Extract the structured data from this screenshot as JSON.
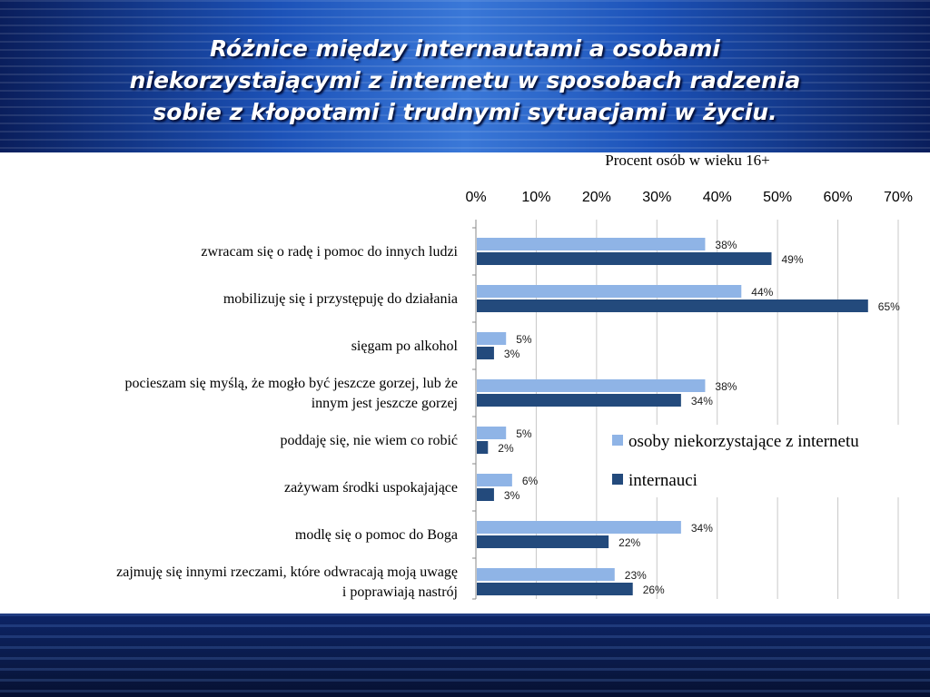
{
  "slide": {
    "title_lines": [
      "Różnice między internautami a osobami",
      "niekorzystającymi z internetu w sposobach radzenia",
      "sobie z kłopotami i trudnymi sytuacjami w życiu."
    ]
  },
  "chart_data": {
    "type": "bar",
    "orientation": "horizontal",
    "title": "Procent osób w wieku 16+",
    "xlim": [
      0,
      70
    ],
    "ticks": [
      "0%",
      "10%",
      "20%",
      "30%",
      "40%",
      "50%",
      "60%",
      "70%"
    ],
    "grid": true,
    "legend_position": "bottom-right",
    "categories": [
      [
        "zwracam się o radę i pomoc do innych ludzi"
      ],
      [
        "mobilizuję się i przystępuję do działania"
      ],
      [
        "sięgam po alkohol"
      ],
      [
        "pocieszam się myślą, że mogło być jeszcze gorzej, lub że",
        "innym jest jeszcze gorzej"
      ],
      [
        "poddaję się, nie wiem co robić"
      ],
      [
        "zażywam środki uspokajające"
      ],
      [
        "modlę się o pomoc do Boga"
      ],
      [
        "zajmuję się innymi rzeczami, które odwracają moją uwagę",
        "i poprawiają nastrój"
      ]
    ],
    "series": [
      {
        "name": "osoby niekorzystające z internetu",
        "color": "#8fb4e6",
        "values": [
          38,
          44,
          5,
          38,
          5,
          6,
          34,
          23
        ],
        "labels": [
          "38%",
          "44%",
          "5%",
          "38%",
          "5%",
          "6%",
          "34%",
          "23%"
        ]
      },
      {
        "name": "internauci",
        "color": "#234a7c",
        "values": [
          49,
          65,
          3,
          34,
          2,
          3,
          22,
          26
        ],
        "labels": [
          "49%",
          "65%",
          "3%",
          "34%",
          "2%",
          "3%",
          "22%",
          "26%"
        ]
      }
    ]
  }
}
